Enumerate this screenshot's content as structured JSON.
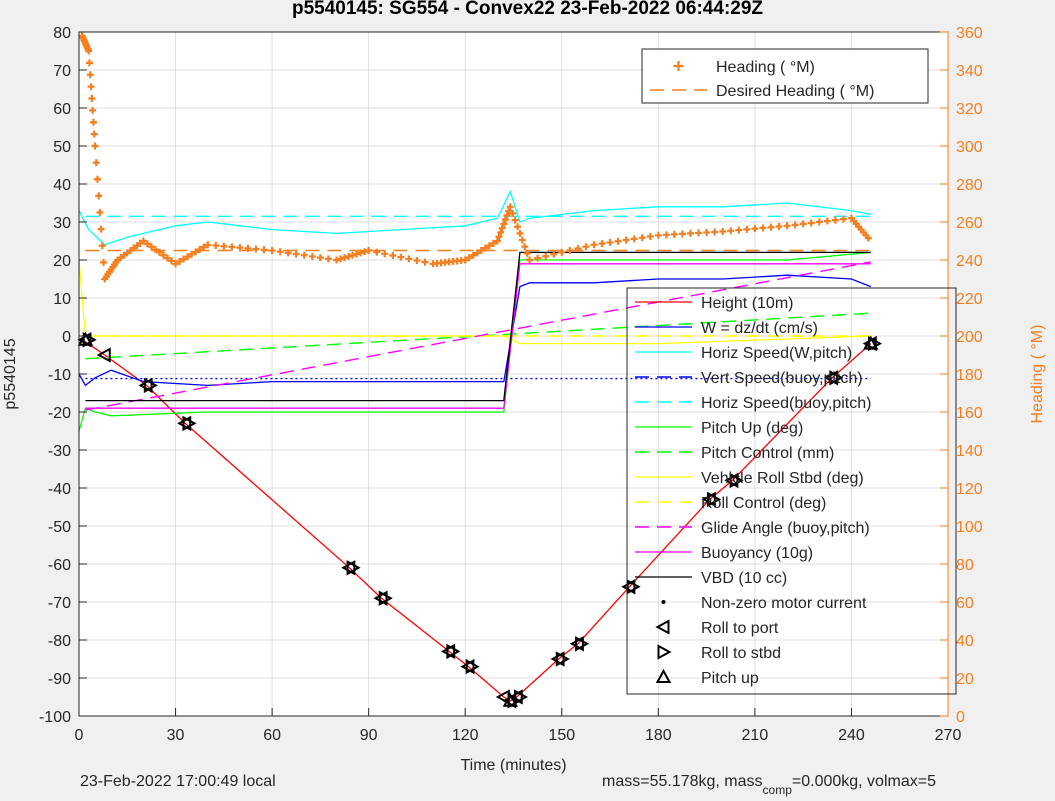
{
  "figure": {
    "title": "p5540145: SG554 - Convex22 23-Feb-2022 06:44:29Z",
    "footer_left": "23-Feb-2022 17:00:49 local",
    "footer_right_1": "mass=55.178kg, mass",
    "footer_right_sub": "comp",
    "footer_right_2": "=0.000kg, volmax=5"
  },
  "chart_data": {
    "type": "line",
    "xlabel": "Time (minutes)",
    "ylabel_left": "p5540145",
    "ylabel_right": "Heading (  °M)",
    "xlim": [
      0,
      270
    ],
    "ylim_left": [
      -100,
      80
    ],
    "ylim_right": [
      0,
      360
    ],
    "xticks": [
      0,
      30,
      60,
      90,
      120,
      150,
      180,
      210,
      240,
      270
    ],
    "yticks_left": [
      -100,
      -90,
      -80,
      -70,
      -60,
      -50,
      -40,
      -30,
      -20,
      -10,
      0,
      10,
      20,
      30,
      40,
      50,
      60,
      70,
      80
    ],
    "yticks_right": [
      0,
      20,
      40,
      60,
      80,
      100,
      120,
      140,
      160,
      180,
      200,
      220,
      240,
      260,
      280,
      300,
      320,
      340,
      360
    ],
    "grid": true,
    "colors": {
      "axis_right": "#f47f20",
      "heading": "#f47f20",
      "height": "#ff0000",
      "w": "#0000ff",
      "horiz": "#00ffff",
      "pitch": "#00ff00",
      "roll": "#ffff00",
      "glide": "#ff00ff",
      "vbd": "#000000"
    },
    "legend_heading": [
      {
        "label": "Heading (  °M)",
        "style": "plus",
        "color": "#f47f20"
      },
      {
        "label": "Desired Heading (    °M)",
        "style": "dash",
        "color": "#f47f20"
      }
    ],
    "legend_main": [
      {
        "label": "Height (10m)",
        "style": "solid",
        "color": "#ff0000"
      },
      {
        "label": "W = dz/dt (cm/s)",
        "style": "solid",
        "color": "#0000ff"
      },
      {
        "label": "Horiz Speed(W,pitch)",
        "style": "solid",
        "color": "#00ffff"
      },
      {
        "label": "Vert Speed(buoy,pitch)",
        "style": "dash",
        "color": "#0000ff"
      },
      {
        "label": "Horiz Speed(buoy,pitch)",
        "style": "dash",
        "color": "#00ffff"
      },
      {
        "label": "Pitch Up (deg)",
        "style": "solid",
        "color": "#00ff00"
      },
      {
        "label": "Pitch Control (mm)",
        "style": "dash",
        "color": "#00ff00"
      },
      {
        "label": "Vehicle Roll Stbd (deg)",
        "style": "solid",
        "color": "#ffff00"
      },
      {
        "label": "Roll Control (deg)",
        "style": "dash",
        "color": "#ffff00"
      },
      {
        "label": "Glide Angle (buoy,pitch)",
        "style": "dash",
        "color": "#ff00ff"
      },
      {
        "label": "Buoyancy (10g)",
        "style": "solid",
        "color": "#ff00ff"
      },
      {
        "label": "VBD (10 cc)",
        "style": "solid",
        "color": "#000000"
      },
      {
        "label": "Non-zero motor current",
        "style": "dot",
        "color": "#000000"
      },
      {
        "label": "Roll to port",
        "style": "tri-left",
        "color": "#000000"
      },
      {
        "label": "Roll to stbd",
        "style": "tri-right",
        "color": "#000000"
      },
      {
        "label": "Pitch up",
        "style": "tri-up",
        "color": "#000000"
      }
    ],
    "series": [
      {
        "name": "Height (10m)",
        "x": [
          0,
          2,
          8,
          21,
          33,
          84,
          94,
          115,
          121,
          132,
          134,
          136,
          149,
          155,
          171,
          196,
          203,
          234,
          246
        ],
        "y": [
          -1,
          -1.5,
          -5,
          -13,
          -23,
          -61,
          -69,
          -83,
          -87,
          -95,
          -96,
          -95,
          -85,
          -81,
          -66,
          -43,
          -38,
          -11,
          -2
        ]
      },
      {
        "name": "W = dz/dt (cm/s)",
        "x": [
          0,
          2,
          5,
          10,
          20,
          40,
          60,
          80,
          100,
          120,
          132,
          137,
          140,
          160,
          180,
          200,
          220,
          240,
          246
        ],
        "y": [
          -10,
          -13,
          -11,
          -9,
          -12,
          -13,
          -12,
          -12,
          -12,
          -12,
          -12,
          13,
          14,
          14,
          15,
          15,
          16,
          15,
          13
        ]
      },
      {
        "name": "Horiz Speed(W,pitch)",
        "x": [
          0,
          3,
          8,
          15,
          20,
          30,
          40,
          60,
          80,
          100,
          120,
          130,
          134,
          137,
          140,
          160,
          180,
          200,
          220,
          240,
          246
        ],
        "y": [
          33,
          28,
          24,
          26,
          27,
          29,
          30,
          28,
          27,
          28,
          29,
          31,
          38,
          30,
          31,
          33,
          34,
          34,
          35,
          33,
          32
        ]
      },
      {
        "name": "Vert Speed(buoy,pitch)",
        "x": [
          2,
          246
        ],
        "y": [
          -11.2,
          -11.2
        ]
      },
      {
        "name": "Horiz Speed(buoy,pitch)",
        "x": [
          2,
          246
        ],
        "y": [
          31.5,
          31.5
        ]
      },
      {
        "name": "Pitch Up (deg)",
        "x": [
          0,
          2,
          5,
          10,
          40,
          80,
          120,
          132,
          137,
          140,
          180,
          220,
          246
        ],
        "y": [
          -25,
          -19,
          -20,
          -21,
          -20,
          -20,
          -20,
          -20,
          20,
          20,
          20,
          20,
          22
        ]
      },
      {
        "name": "Pitch Control (mm)",
        "x": [
          2,
          246
        ],
        "y": [
          -6,
          6
        ]
      },
      {
        "name": "Vehicle Roll Stbd (deg)",
        "x": [
          0,
          2,
          10,
          50,
          100,
          132,
          137,
          180,
          246
        ],
        "y": [
          20,
          0,
          0,
          0,
          0,
          0,
          -2,
          -2,
          0
        ]
      },
      {
        "name": "Roll Control (deg)",
        "x": [
          2,
          246
        ],
        "y": [
          0,
          0
        ]
      },
      {
        "name": "Glide Angle (buoy,pitch)",
        "x": [
          2,
          246
        ],
        "y": [
          -19.5,
          19.5
        ]
      },
      {
        "name": "Buoyancy (10g)",
        "x": [
          2,
          132,
          137,
          246
        ],
        "y": [
          -19,
          -19,
          19,
          19
        ]
      },
      {
        "name": "VBD (10 cc)",
        "x": [
          2,
          132,
          137,
          246
        ],
        "y": [
          -17,
          -17,
          22,
          22
        ]
      },
      {
        "name": "Heading (  °M)",
        "axis": "right",
        "x": [
          1,
          3,
          5,
          8,
          12,
          20,
          30,
          40,
          60,
          80,
          90,
          110,
          120,
          130,
          134,
          140,
          160,
          180,
          200,
          220,
          240,
          246
        ],
        "y": [
          358,
          350,
          300,
          230,
          240,
          250,
          238,
          248,
          245,
          240,
          245,
          238,
          240,
          250,
          268,
          240,
          248,
          253,
          255,
          258,
          262,
          250
        ]
      },
      {
        "name": "Desired Heading (    °M)",
        "axis": "right",
        "x": [
          2,
          246
        ],
        "y": [
          245,
          245
        ]
      }
    ],
    "markers": {
      "roll_to_port": {
        "x": [
          2,
          8,
          21,
          33,
          84,
          94,
          115,
          121,
          132,
          134,
          136,
          149,
          155,
          171,
          196,
          203,
          234,
          246
        ],
        "y": [
          -1,
          -5,
          -13,
          -23,
          -61,
          -69,
          -83,
          -87,
          -95,
          -96,
          -95,
          -85,
          -81,
          -66,
          -43,
          -38,
          -11,
          -2
        ]
      },
      "roll_to_stbd": {
        "x": [
          3,
          22,
          34,
          85,
          95,
          116,
          122,
          135,
          137,
          150,
          156,
          172,
          197,
          204,
          235,
          247
        ],
        "y": [
          -1,
          -13,
          -23,
          -61,
          -69,
          -83,
          -87,
          -96,
          -95,
          -85,
          -81,
          -66,
          -43,
          -38,
          -11,
          -2
        ]
      },
      "pitch_up": {
        "x": [
          2,
          134,
          246
        ],
        "y": [
          -1,
          -96,
          -2
        ]
      }
    }
  }
}
